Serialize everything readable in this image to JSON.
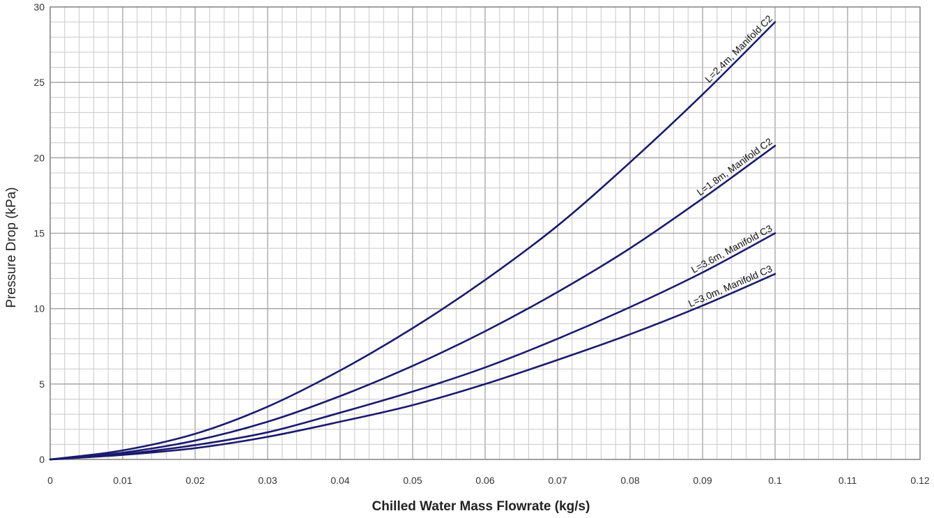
{
  "chart_data": {
    "type": "line",
    "title": "",
    "xlabel": "Chilled Water Mass Flowrate (kg/s)",
    "ylabel": "Pressure Drop (kPa)",
    "xlim": [
      0,
      0.12
    ],
    "ylim": [
      0,
      30
    ],
    "x_ticks": [
      "0",
      "0.01",
      "0.02",
      "0.03",
      "0.04",
      "0.05",
      "0.06",
      "0.07",
      "0.08",
      "0.09",
      "0.1",
      "0.11",
      "0.12"
    ],
    "y_ticks": [
      "0",
      "5",
      "10",
      "15",
      "20",
      "25",
      "30"
    ],
    "grid": true,
    "line_color": "#1a1a6e",
    "series": [
      {
        "name": "L=2.4m, Manifold C2",
        "x": [
          0,
          0.01,
          0.02,
          0.03,
          0.04,
          0.05,
          0.06,
          0.07,
          0.08,
          0.09,
          0.1
        ],
        "values": [
          0,
          0.6,
          1.7,
          3.5,
          5.9,
          8.7,
          11.9,
          15.5,
          19.7,
          24.2,
          29.0
        ]
      },
      {
        "name": "L=1.8m, Manifold C2",
        "x": [
          0,
          0.01,
          0.02,
          0.03,
          0.04,
          0.05,
          0.06,
          0.07,
          0.08,
          0.09,
          0.1
        ],
        "values": [
          0,
          0.45,
          1.25,
          2.5,
          4.2,
          6.2,
          8.5,
          11.1,
          14.0,
          17.3,
          20.8
        ]
      },
      {
        "name": "L=3.6m, Manifold C3",
        "x": [
          0,
          0.01,
          0.02,
          0.03,
          0.04,
          0.05,
          0.06,
          0.07,
          0.08,
          0.09,
          0.1
        ],
        "values": [
          0,
          0.35,
          0.95,
          1.8,
          3.1,
          4.5,
          6.1,
          8.0,
          10.1,
          12.4,
          15.0
        ]
      },
      {
        "name": "L=3.0m, Manifold C3",
        "x": [
          0,
          0.01,
          0.02,
          0.03,
          0.04,
          0.05,
          0.06,
          0.07,
          0.08,
          0.09,
          0.1
        ],
        "values": [
          0,
          0.3,
          0.75,
          1.5,
          2.5,
          3.6,
          5.0,
          6.6,
          8.3,
          10.2,
          12.3
        ]
      }
    ]
  }
}
